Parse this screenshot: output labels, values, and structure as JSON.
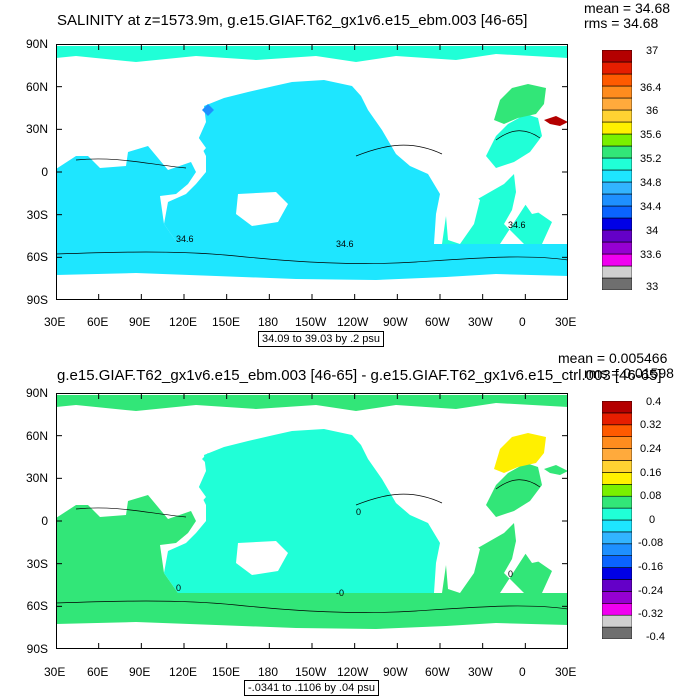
{
  "colors": {
    "land": "#ffffff",
    "palette": [
      "#6f6f6f",
      "#cfcfcf",
      "#f000f0",
      "#9600d2",
      "#6400c8",
      "#0000e6",
      "#0a64ff",
      "#1e90ff",
      "#32b4ff",
      "#1ee6ff",
      "#20ffd7",
      "#32e678",
      "#7af000",
      "#fff000",
      "#ffd232",
      "#ffaa3c",
      "#ff8c1e",
      "#ff5a00",
      "#e61e00",
      "#b40000"
    ]
  },
  "panels": [
    {
      "title": "SALINITY at z=1573.9m, g.e15.GIAF.T62_gx1v6.e15_ebm.003 [46-65]",
      "mean": "mean = 34.68",
      "rms": "rms = 34.68",
      "lat_labels": [
        "90N",
        "60N",
        "30N",
        "0",
        "30S",
        "60S",
        "90S"
      ],
      "lon_labels": [
        "30E",
        "60E",
        "90E",
        "120E",
        "150E",
        "180",
        "150W",
        "120W",
        "90W",
        "60W",
        "30W",
        "0",
        "30E"
      ],
      "range_label": "34.09 to 39.03 by .2 psu",
      "colorbar_labels": [
        "37",
        "36.4",
        "36",
        "35.6",
        "35.2",
        "34.8",
        "34.4",
        "34",
        "33.6",
        "33"
      ],
      "contour_labels": [
        "34.6",
        "34.6",
        "34.6"
      ],
      "fill": {
        "pacific": "#1ee6ff",
        "indian": "#1ee6ff",
        "southern": "#1ee6ff",
        "atl_south": "#20ffd7",
        "atl_north": "#20ffd7",
        "atl_subpolar": "#32e678",
        "arctic": "#20ffd7",
        "med": "#b40000",
        "japan_sea": "#1e90ff"
      }
    },
    {
      "title": "g.e15.GIAF.T62_gx1v6.e15_ebm.003 [46-65] - g.e15.GIAF.T62_gx1v6.e15_ctrl.003 [46-65]",
      "mean": "mean = 0.005466",
      "rms": "rms = 0.01598",
      "lat_labels": [
        "90N",
        "60N",
        "30N",
        "0",
        "30S",
        "60S",
        "90S"
      ],
      "lon_labels": [
        "30E",
        "60E",
        "90E",
        "120E",
        "150E",
        "180",
        "150W",
        "120W",
        "90W",
        "60W",
        "30W",
        "0",
        "30E"
      ],
      "range_label": "-.0341 to .1106 by .04 psu",
      "colorbar_labels": [
        "0.4",
        "0.32",
        "0.24",
        "0.16",
        "0.08",
        "0",
        "-0.08",
        "-0.16",
        "-0.24",
        "-0.32",
        "-0.4"
      ],
      "contour_labels": [
        "0",
        "-0",
        "0",
        "0"
      ],
      "fill": {
        "pacific": "#20ffd7",
        "indian": "#32e678",
        "southern": "#32e678",
        "atl_south": "#32e678",
        "atl_north": "#32e678",
        "atl_subpolar": "#fff000",
        "arctic": "#32e678",
        "med": "#32e678",
        "japan_sea": "#20ffd7"
      }
    }
  ]
}
